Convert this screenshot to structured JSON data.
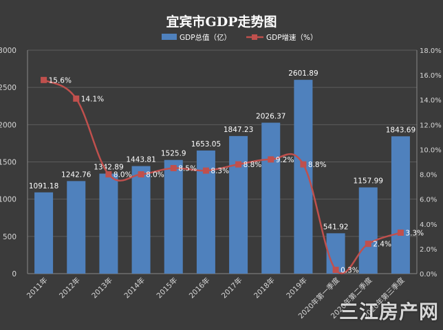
{
  "chart_data": {
    "type": "bar+line",
    "title": "宜宾市GDP走势图",
    "categories": [
      "2011年",
      "2012年",
      "2013年",
      "2014年",
      "2015年",
      "2016年",
      "2017年",
      "2018年",
      "2019年",
      "2020年第一季度",
      "2020年第二季度",
      "2020年第三季度"
    ],
    "series": [
      {
        "name": "GDP总值（亿）",
        "type": "bar",
        "axis": "left",
        "color": "#4f81bd",
        "values": [
          1091.18,
          1242.76,
          1342.89,
          1443.81,
          1525.9,
          1653.05,
          1847.23,
          2026.37,
          2601.89,
          541.92,
          1157.99,
          1843.69
        ],
        "labels": [
          "1091.18",
          "1242.76",
          "1342.89",
          "1443.81",
          "1525.9",
          "1653.05",
          "1847.23",
          "2026.37",
          "2601.89",
          "541.92",
          "1157.99",
          "1843.69"
        ]
      },
      {
        "name": "GDP增速（%）",
        "type": "line",
        "axis": "right",
        "color": "#c0504d",
        "values": [
          15.6,
          14.1,
          8.0,
          8.0,
          8.5,
          8.3,
          8.8,
          9.2,
          8.8,
          0.3,
          2.4,
          3.3
        ],
        "labels": [
          "15.6%",
          "14.1%",
          "8.0%",
          "8.0%",
          "8.5%",
          "8.3%",
          "8.8%",
          "9.2%",
          "8.8%",
          "0.3%",
          "2.4%",
          "3.3%"
        ]
      }
    ],
    "y_left": {
      "min": 0,
      "max": 3000,
      "ticks": [
        "0",
        "500",
        "1000",
        "1500",
        "2000",
        "2500",
        "3000"
      ]
    },
    "y_right": {
      "min": 0,
      "max": 18,
      "ticks": [
        "0.0%",
        "2.0%",
        "4.0%",
        "6.0%",
        "8.0%",
        "10.0%",
        "12.0%",
        "14.0%",
        "16.0%",
        "18.0%"
      ]
    },
    "grid": true,
    "legend_position": "top-center"
  },
  "watermark": "三江房产网"
}
